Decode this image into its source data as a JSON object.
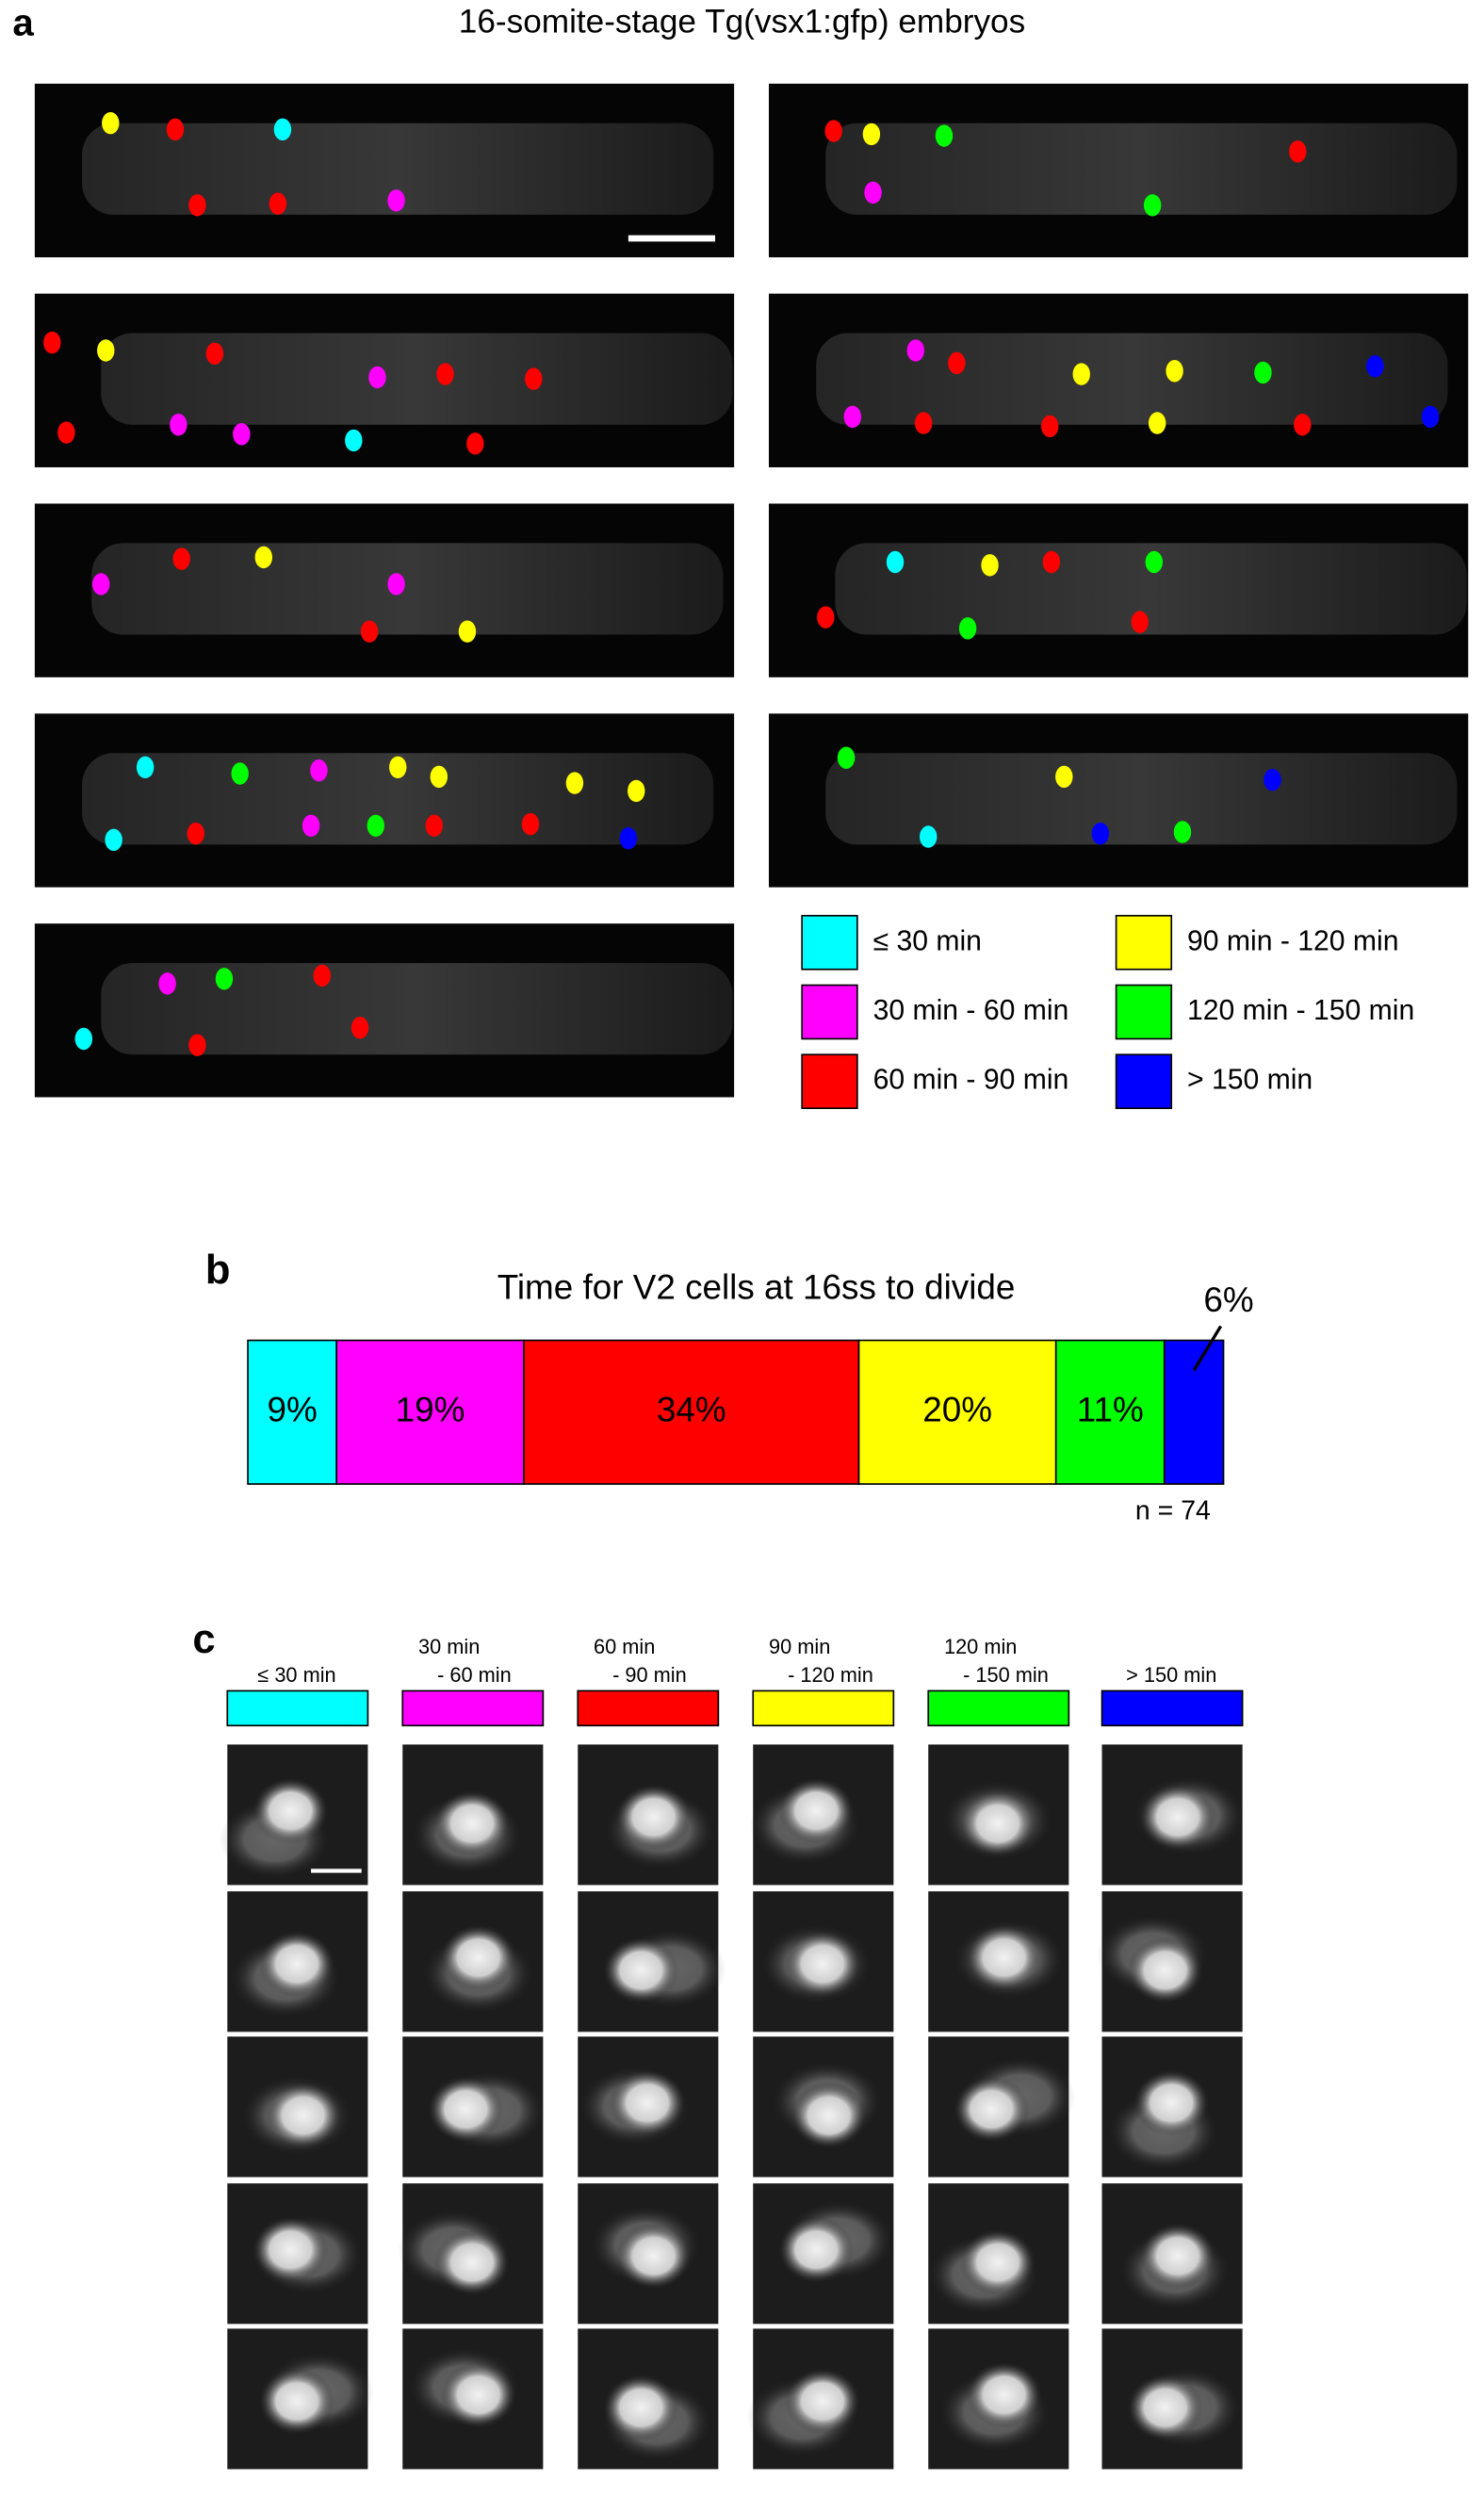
{
  "panel_a": {
    "label": "a",
    "title": "16-somite-stage Tg(vsx1:gfp) embryos",
    "legend": [
      {
        "label": "≤ 30 min",
        "color": "#00ffff"
      },
      {
        "label": "30 min - 60 min",
        "color": "#ff00ff"
      },
      {
        "label": "60 min - 90 min",
        "color": "#ff0000"
      },
      {
        "label": "90 min - 120 min",
        "color": "#ffff00"
      },
      {
        "label": "120 min - 150 min",
        "color": "#00ff00"
      },
      {
        "label": "> 150 min",
        "color": "#0000ff"
      }
    ]
  },
  "chart_data": {
    "type": "bar",
    "label": "b",
    "title": "Time for V2 cells at 16ss to divide",
    "series": [
      {
        "color": "#00ffff",
        "values": [
          9
        ],
        "value_labels": [
          "9%"
        ]
      },
      {
        "color": "#ff00ff",
        "values": [
          19
        ],
        "value_labels": [
          "19%"
        ]
      },
      {
        "color": "#ff0000",
        "values": [
          34
        ],
        "value_labels": [
          "34%"
        ]
      },
      {
        "color": "#ffff00",
        "values": [
          20
        ],
        "value_labels": [
          "20%"
        ]
      },
      {
        "color": "#00ff00",
        "values": [
          11
        ],
        "value_labels": [
          "11%"
        ]
      },
      {
        "color": "#0000ff",
        "values": [
          6
        ],
        "value_labels": [
          "6%"
        ]
      }
    ],
    "annotation": "n = 74"
  },
  "panel_c": {
    "label": "c",
    "columns": [
      {
        "label": [
          "≤ 30 min"
        ],
        "color": "#00ffff"
      },
      {
        "label": [
          "30 min",
          "- 60 min"
        ],
        "color": "#ff00ff"
      },
      {
        "label": [
          "60 min",
          "- 90 min"
        ],
        "color": "#ff0000"
      },
      {
        "label": [
          "90 min",
          "- 120 min"
        ],
        "color": "#ffff00"
      },
      {
        "label": [
          "120 min",
          "- 150 min"
        ],
        "color": "#00ff00"
      },
      {
        "label": [
          "> 150 min"
        ],
        "color": "#0000ff"
      }
    ]
  }
}
